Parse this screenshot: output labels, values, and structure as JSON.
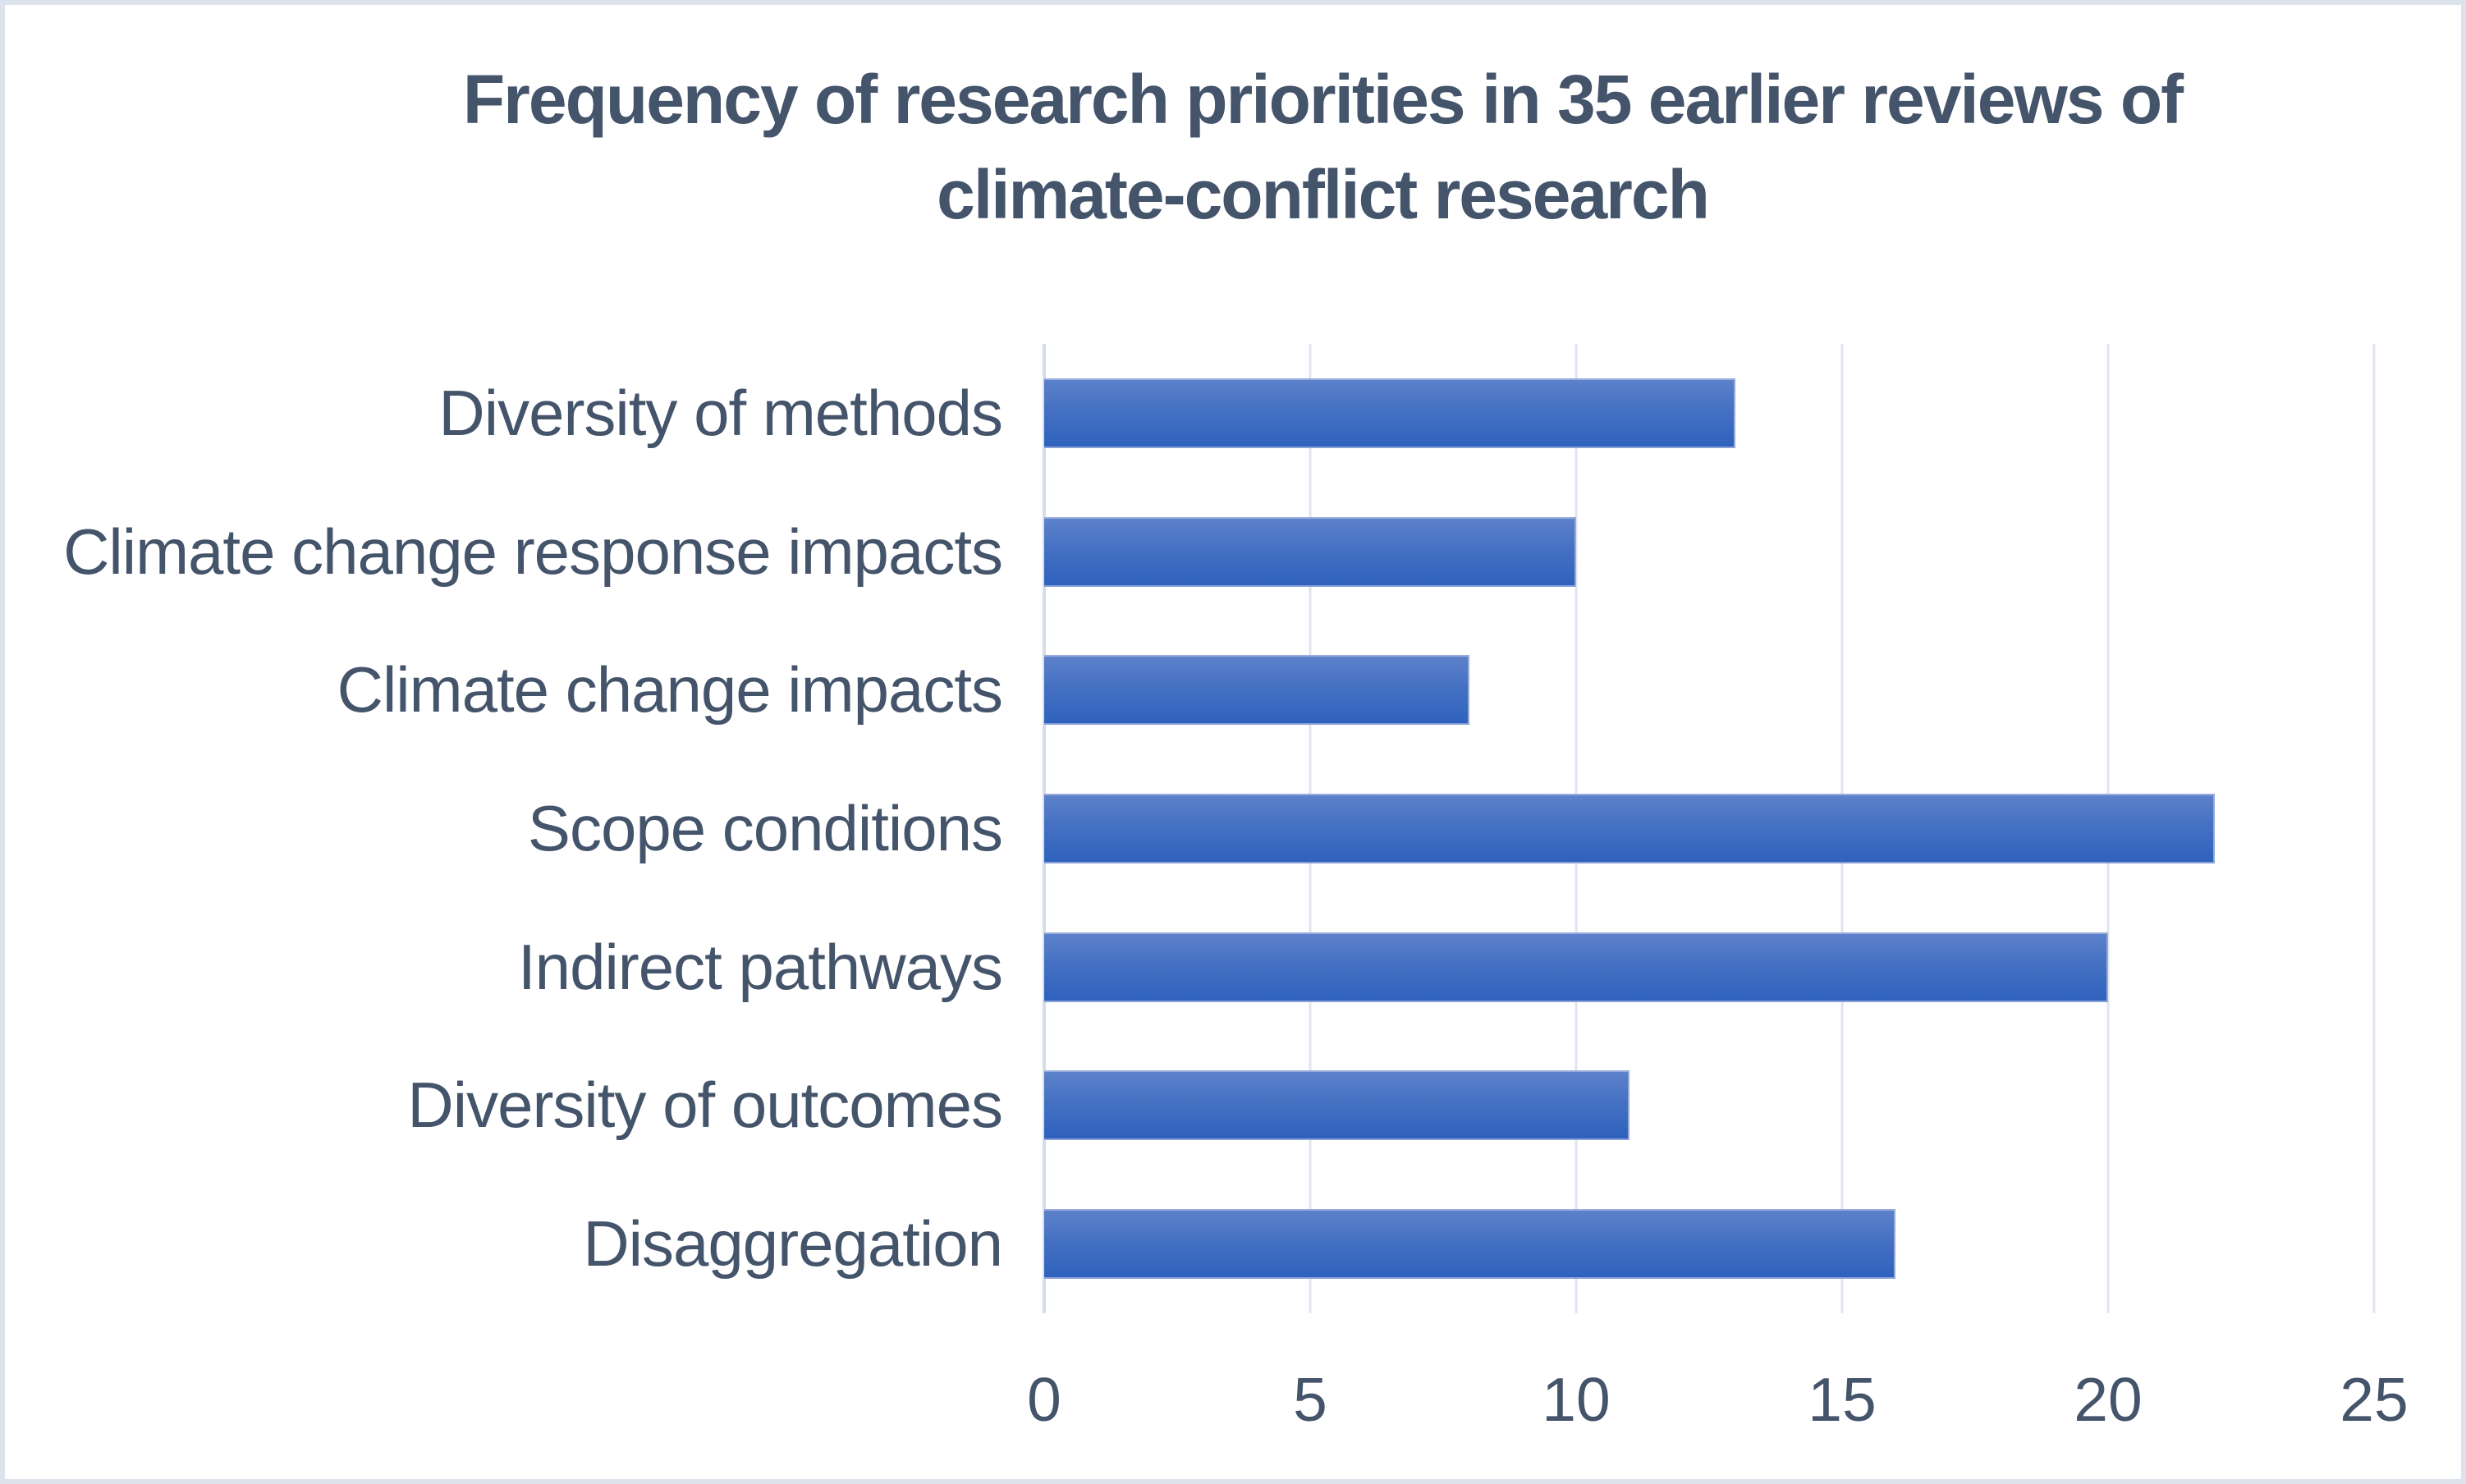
{
  "chart_data": {
    "type": "bar",
    "orientation": "horizontal",
    "title": "Frequency of research priorities in 35 earlier reviews of climate-conflict research",
    "title_lines": [
      "Frequency of research priorities in 35 earlier reviews of",
      "climate-conflict research"
    ],
    "categories": [
      "Diversity of methods",
      "Climate change response impacts",
      "Climate change impacts",
      "Scope conditions",
      "Indirect pathways",
      "Diversity of outcomes",
      "Disaggregation"
    ],
    "values": [
      13,
      10,
      8,
      22,
      20,
      11,
      16
    ],
    "xlabel": "",
    "ylabel": "",
    "xlim": [
      0,
      25
    ],
    "x_ticks": [
      0,
      5,
      10,
      15,
      20,
      25
    ],
    "grid": true,
    "legend": "none",
    "colors": {
      "bar_gradient_top": "#5d81ca",
      "bar_gradient_bottom": "#2f62bd",
      "bar_edge": "#97acdd",
      "gridline": "#dfe5ef",
      "axis_line": "#d5dde9",
      "text": "#44546a",
      "frame_border": "#dce3ec",
      "background": "#ffffff"
    }
  }
}
